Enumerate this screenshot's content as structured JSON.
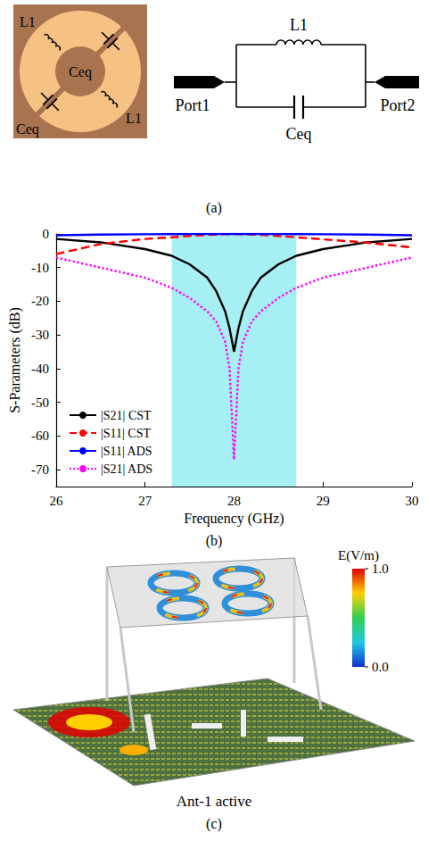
{
  "captions": [
    "(a)",
    "(b)",
    "(c)"
  ],
  "panel_a": {
    "unit_cell_labels": [
      "L1",
      "Ceq",
      "Ceq",
      "L1"
    ],
    "circuit": {
      "inductor": "L1",
      "capacitor": "Ceq",
      "port_1": "Port1",
      "port_2": "Port2"
    }
  },
  "chart_data": {
    "type": "line",
    "xlabel": "Frequency (GHz)",
    "ylabel": "S-Parameters (dB)",
    "x": [
      26,
      26.5,
      27,
      27.3,
      27.5,
      27.7,
      27.8,
      27.9,
      27.95,
      28,
      28.05,
      28.1,
      28.2,
      28.3,
      28.5,
      28.7,
      29,
      29.5,
      30
    ],
    "xlim": [
      26,
      30
    ],
    "xticks": [
      26,
      27,
      28,
      29,
      30
    ],
    "ylim": [
      -75,
      0
    ],
    "yticks": [
      -70,
      -60,
      -50,
      -40,
      -30,
      -20,
      -10,
      0
    ],
    "grid": false,
    "legend": "lower left",
    "highlight": {
      "x": [
        27.3,
        28.7
      ],
      "color": "#a6f0f5"
    },
    "series": [
      {
        "name": "|S21| CST",
        "color": "#000000",
        "line_style": "solid",
        "values": [
          -1.5,
          -2.5,
          -4.5,
          -6.5,
          -9,
          -13,
          -17,
          -23,
          -28,
          -35,
          -28,
          -23,
          -17,
          -13,
          -9,
          -6.5,
          -4.5,
          -2.5,
          -1.5
        ]
      },
      {
        "name": "|S11| CST",
        "color": "#ff0000",
        "line_style": "dashed",
        "values": [
          -6,
          -3,
          -1.5,
          -1,
          -0.6,
          -0.3,
          -0.2,
          -0.1,
          -0.05,
          0,
          -0.05,
          -0.1,
          -0.2,
          -0.3,
          -0.6,
          -1,
          -1.6,
          -2.6,
          -4
        ]
      },
      {
        "name": "|S11| ADS",
        "color": "#0000ff",
        "line_style": "solid",
        "values": [
          -0.4,
          -0.2,
          -0.1,
          -0.05,
          -0.03,
          0,
          0,
          0,
          0,
          0,
          0,
          0,
          0,
          0,
          -0.03,
          -0.05,
          -0.1,
          -0.2,
          -0.4
        ]
      },
      {
        "name": "|S21| ADS",
        "color": "#ff00ff",
        "line_style": "dotted",
        "values": [
          -7,
          -10,
          -13,
          -16,
          -19,
          -23,
          -26,
          -32,
          -40,
          -67,
          -40,
          -32,
          -26,
          -23,
          -19,
          -16,
          -13,
          -10,
          -7
        ]
      }
    ]
  },
  "panel_c": {
    "annotation": "Ant-1 active",
    "colorbar": {
      "title": "E(V/m)",
      "range": [
        0,
        1
      ],
      "ticks": [
        {
          "value": 1,
          "label": "1.0"
        },
        {
          "value": 0,
          "label": "0.0"
        }
      ]
    }
  }
}
